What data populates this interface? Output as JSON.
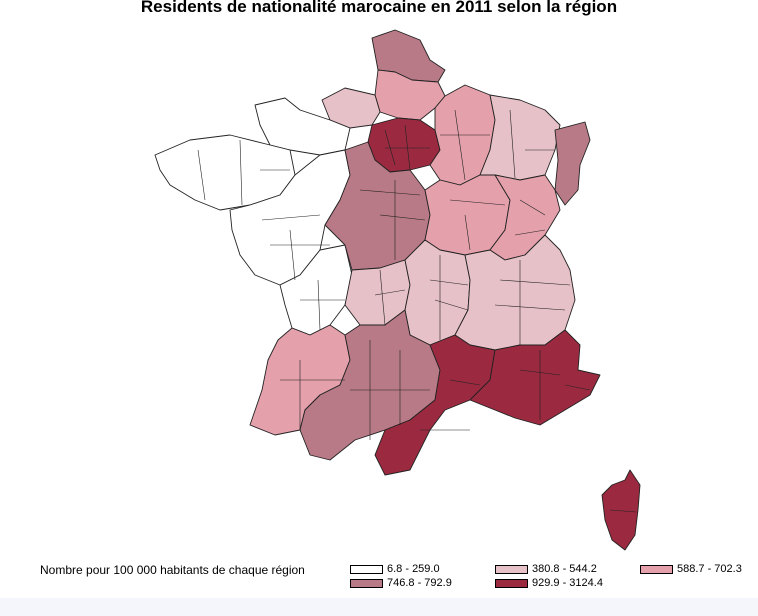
{
  "title": "Residents de nationalité marocaine en 2011 selon la région",
  "legend": {
    "title": "Nombre pour 100 000 habitants de chaque région",
    "classes": [
      {
        "label": "6.8 - 259.0",
        "color": "#ffffff"
      },
      {
        "label": "380.8 - 544.2",
        "color": "#e7c1c8"
      },
      {
        "label": "588.7 - 702.3",
        "color": "#e4a0ab"
      },
      {
        "label": "746.8 - 792.9",
        "color": "#b87a86"
      },
      {
        "label": "929.9 - 3124.4",
        "color": "#9b2a40"
      }
    ]
  },
  "map_data": {
    "region": "France (départements)",
    "highest_class_areas": [
      "Île-de-France",
      "Provence-Alpes-Côte d'Azur",
      "Languedoc-Roussillon",
      "Corse"
    ],
    "lowest_class_areas": [
      "Bretagne",
      "Pays de la Loire",
      "Basse-Normandie",
      "Poitou-Charentes"
    ]
  }
}
